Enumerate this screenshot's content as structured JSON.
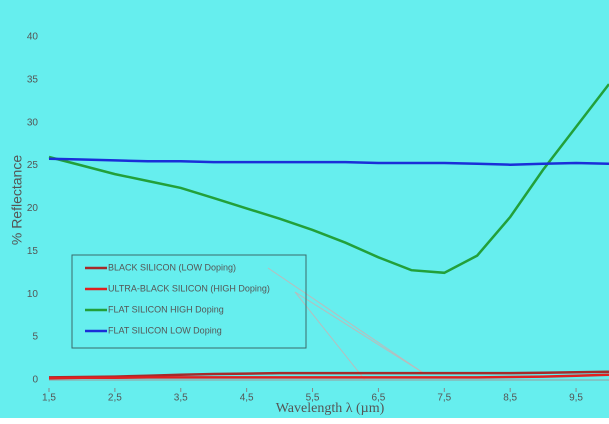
{
  "chart_data": {
    "type": "line",
    "x_label": "Wavelength λ (µm)",
    "y_label": "% Reflectance",
    "x": [
      1.5,
      2,
      2.5,
      3,
      3.5,
      4,
      4.5,
      5,
      5.5,
      6,
      6.5,
      7,
      7.5,
      8,
      8.5,
      9,
      9.5,
      10
    ],
    "series": [
      {
        "name": "BLACK SILICON (LOW Doping)",
        "color": "#a52a2a",
        "values": [
          0.3,
          0.35,
          0.4,
          0.5,
          0.6,
          0.7,
          0.75,
          0.8,
          0.8,
          0.8,
          0.8,
          0.8,
          0.8,
          0.8,
          0.8,
          0.85,
          0.9,
          0.95
        ]
      },
      {
        "name": "ULTRA-BLACK SILICON (HIGH Doping)",
        "color": "#e02020",
        "values": [
          0.2,
          0.25,
          0.25,
          0.3,
          0.3,
          0.3,
          0.3,
          0.3,
          0.3,
          0.3,
          0.3,
          0.3,
          0.3,
          0.3,
          0.35,
          0.4,
          0.5,
          0.6
        ]
      },
      {
        "name": "FLAT SILICON HIGH Doping",
        "color": "#22a03a",
        "values": [
          26,
          25,
          24,
          23.2,
          22.4,
          21.2,
          20,
          18.8,
          17.5,
          16,
          14.3,
          12.8,
          12.5,
          14.5,
          19,
          24.5,
          29.5,
          34.5
        ]
      },
      {
        "name": "FLAT SILICON LOW Doping",
        "color": "#1a2ed8",
        "values": [
          25.8,
          25.7,
          25.6,
          25.5,
          25.5,
          25.4,
          25.4,
          25.4,
          25.4,
          25.4,
          25.3,
          25.3,
          25.3,
          25.2,
          25.1,
          25.2,
          25.3,
          25.2
        ]
      }
    ],
    "xlim": [
      1.5,
      10
    ],
    "ylim": [
      -1.4,
      44.3
    ],
    "xticks": [
      {
        "value": 1.5,
        "label": "1,5"
      },
      {
        "value": 2.5,
        "label": "2,5"
      },
      {
        "value": 3.5,
        "label": "3,5"
      },
      {
        "value": 4.5,
        "label": "4,5"
      },
      {
        "value": 5.5,
        "label": "5,5"
      },
      {
        "value": 6.5,
        "label": "6,5"
      },
      {
        "value": 7.5,
        "label": "7,5"
      },
      {
        "value": 8.5,
        "label": "8,5"
      },
      {
        "value": 9.5,
        "label": "9,5"
      }
    ],
    "yticks": [
      0,
      5,
      10,
      15,
      20,
      25,
      30,
      35,
      40
    ],
    "legend": "lower-left"
  }
}
